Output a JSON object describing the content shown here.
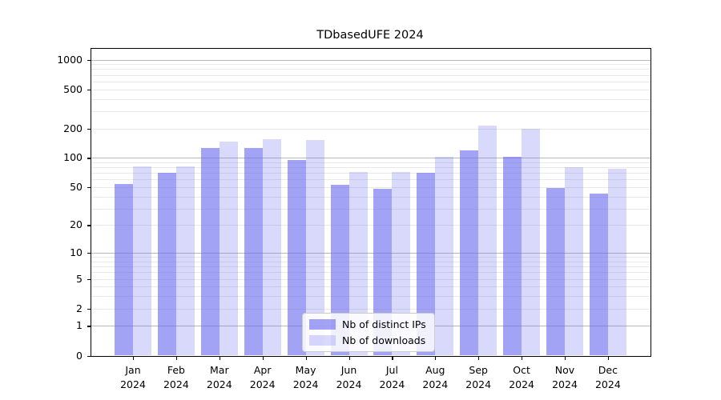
{
  "chart_data": {
    "type": "bar",
    "title": "TDbasedUFE 2024",
    "categories": [
      {
        "month": "Jan",
        "year": "2024"
      },
      {
        "month": "Feb",
        "year": "2024"
      },
      {
        "month": "Mar",
        "year": "2024"
      },
      {
        "month": "Apr",
        "year": "2024"
      },
      {
        "month": "May",
        "year": "2024"
      },
      {
        "month": "Jun",
        "year": "2024"
      },
      {
        "month": "Jul",
        "year": "2024"
      },
      {
        "month": "Aug",
        "year": "2024"
      },
      {
        "month": "Sep",
        "year": "2024"
      },
      {
        "month": "Oct",
        "year": "2024"
      },
      {
        "month": "Nov",
        "year": "2024"
      },
      {
        "month": "Dec",
        "year": "2024"
      }
    ],
    "series": [
      {
        "name": "Nb of distinct IPs",
        "key": "distinct-ips",
        "color": "rgba(102,102,238,0.6)",
        "values": [
          54,
          70,
          127,
          127,
          95,
          53,
          48,
          70,
          119,
          102,
          49,
          43
        ]
      },
      {
        "name": "Nb of downloads",
        "key": "downloads",
        "color": "rgba(102,102,238,0.25)",
        "values": [
          82,
          82,
          147,
          156,
          152,
          71,
          72,
          103,
          212,
          198,
          81,
          78
        ]
      }
    ],
    "yscale": "log1p",
    "ylabel": "",
    "xlabel": "",
    "yticks": [
      0,
      1,
      2,
      5,
      10,
      20,
      50,
      100,
      200,
      500,
      1000
    ],
    "major_gridlines": [
      1,
      10,
      100,
      1000
    ],
    "minor_gridlines": [
      3,
      4,
      6,
      7,
      8,
      9,
      30,
      40,
      60,
      70,
      80,
      90,
      300,
      400,
      600,
      700,
      800,
      900
    ],
    "ylim": [
      0,
      1360
    ],
    "grid": true,
    "legend_position": "lower center"
  },
  "colors": {
    "bar_dark": "rgba(102,102,238,0.6)",
    "bar_light": "rgba(102,102,238,0.25)",
    "grid_major": "#b8b8b8",
    "grid_minor": "#e9e9e9",
    "spine": "#000000",
    "background": "#ffffff",
    "text": "#000000"
  }
}
